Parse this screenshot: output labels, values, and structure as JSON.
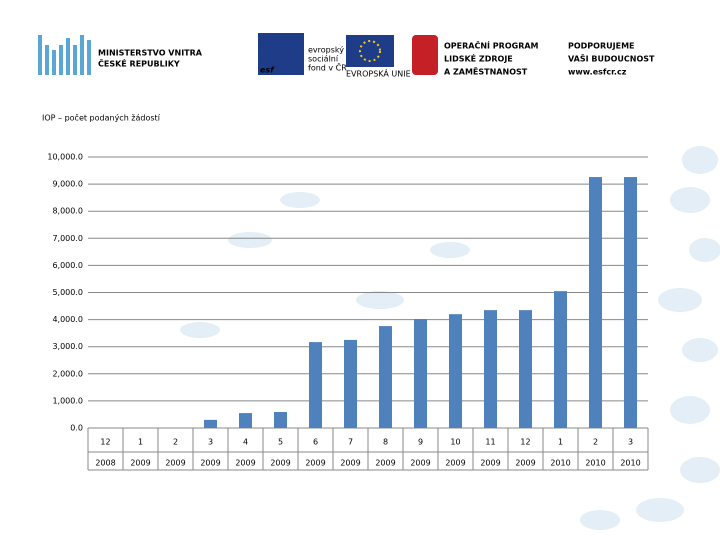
{
  "header": {
    "ministry": [
      "MINISTERSTVO VNITRA",
      "ČESKÉ REPUBLIKY"
    ],
    "esf_logo": "esf",
    "esf": [
      "evropský",
      "sociální",
      "fond v ČR"
    ],
    "eu": "EVROPSKÁ UNIE",
    "program": [
      "OPERAČNÍ PROGRAM",
      "LIDSKÉ ZDROJE",
      "A ZAMĚSTNANOST"
    ],
    "slogan": [
      "PODPORUJEME",
      "VAŠI BUDOUCNOST",
      "www.esfcr.cz"
    ]
  },
  "chart_data": {
    "type": "bar",
    "title": "IOP – počet podaných žádostí",
    "categories": [
      "12",
      "1",
      "2",
      "3",
      "4",
      "5",
      "6",
      "7",
      "8",
      "9",
      "10",
      "11",
      "12",
      "1",
      "2",
      "3"
    ],
    "years": [
      "2008",
      "2009",
      "2009",
      "2009",
      "2009",
      "2009",
      "2009",
      "2009",
      "2009",
      "2009",
      "2009",
      "2009",
      "2009",
      "2010",
      "2010",
      "2010"
    ],
    "values": [
      0,
      0,
      0,
      300,
      550,
      590,
      3170,
      3250,
      3760,
      4020,
      4200,
      4350,
      4350,
      5050,
      9260,
      9260
    ],
    "color": "#4f81bd",
    "ylim": [
      0,
      10000
    ],
    "yticks": [
      {
        "value": 0,
        "label": "0.0"
      },
      {
        "value": 1000,
        "label": "1,000.0"
      },
      {
        "value": 2000,
        "label": "2,000.0"
      },
      {
        "value": 3000,
        "label": "3,000.0"
      },
      {
        "value": 4000,
        "label": "4,000.0"
      },
      {
        "value": 5000,
        "label": "5,000.0"
      },
      {
        "value": 6000,
        "label": "6,000.0"
      },
      {
        "value": 7000,
        "label": "7,000.0"
      },
      {
        "value": 8000,
        "label": "8,000.0"
      },
      {
        "value": 9000,
        "label": "9,000.0"
      },
      {
        "value": 10000,
        "label": "10,000.0"
      }
    ],
    "grid": true
  }
}
